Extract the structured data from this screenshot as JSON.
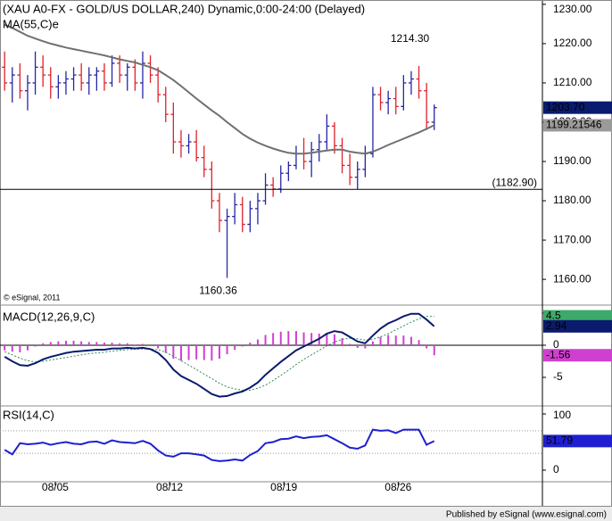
{
  "chart_data": [
    {
      "type": "ohlc",
      "title": "(XAU A0-FX - GOLD/US DOLLAR,240) Dynamic,0:00-24:00 (Delayed)",
      "x": [
        0,
        1,
        2,
        3,
        4,
        5,
        6,
        7,
        8,
        9,
        10,
        11,
        12,
        13,
        14,
        15,
        16,
        17,
        18,
        19,
        20,
        21,
        22,
        23,
        24,
        25,
        26,
        27,
        28,
        29,
        30,
        31,
        32,
        33,
        34,
        35,
        36,
        37,
        38,
        39,
        40,
        41,
        42,
        43,
        44,
        45,
        46,
        47,
        48,
        49,
        50,
        51,
        52,
        53,
        54,
        55,
        56
      ],
      "xlim": [
        -0.6,
        70.1
      ],
      "xticks": [
        {
          "value": 6.6,
          "label": "08/05"
        },
        {
          "value": 21.5,
          "label": "08/12"
        },
        {
          "value": 36.4,
          "label": "08/19"
        },
        {
          "value": 51.3,
          "label": "08/26"
        }
      ],
      "open": [
        1214,
        1210,
        1212,
        1208,
        1210,
        1214,
        1212,
        1209,
        1210,
        1211,
        1212,
        1210,
        1212,
        1213,
        1210,
        1215,
        1212,
        1214,
        1210,
        1215,
        1212,
        1207,
        1202,
        1195,
        1194,
        1195,
        1191,
        1188,
        1180,
        1175,
        1176,
        1179,
        1174,
        1178,
        1180,
        1184,
        1183,
        1187,
        1189,
        1192,
        1190,
        1193,
        1195,
        1199,
        1194,
        1189,
        1186,
        1188,
        1192,
        1207,
        1205,
        1206,
        1204,
        1210,
        1211,
        1208,
        1200
      ],
      "high": [
        1218,
        1214,
        1215,
        1212,
        1218,
        1217,
        1214,
        1212,
        1213,
        1214,
        1215,
        1214,
        1214,
        1215,
        1217,
        1217,
        1215,
        1216,
        1218,
        1217,
        1214,
        1209,
        1205,
        1198,
        1197,
        1198,
        1194,
        1190,
        1182,
        1178,
        1182,
        1181,
        1180,
        1182,
        1187,
        1186,
        1189,
        1190,
        1194,
        1196,
        1195,
        1197,
        1202,
        1200,
        1196,
        1192,
        1190,
        1194,
        1209,
        1209,
        1208,
        1209,
        1212,
        1213,
        1214.3,
        1210,
        1204.5
      ],
      "low": [
        1208,
        1205,
        1206,
        1203,
        1207,
        1209,
        1206,
        1206,
        1207,
        1208,
        1208,
        1207,
        1208,
        1208,
        1209,
        1210,
        1208,
        1208,
        1206,
        1210,
        1205,
        1200,
        1192,
        1191,
        1192,
        1190,
        1186,
        1178,
        1172,
        1160.36,
        1174,
        1172,
        1172,
        1174,
        1179,
        1181,
        1182,
        1185,
        1188,
        1188,
        1186,
        1190,
        1193,
        1192,
        1187,
        1184,
        1182.9,
        1186,
        1191,
        1203,
        1202,
        1202,
        1203,
        1207,
        1206,
        1198,
        1198
      ],
      "close": [
        1210,
        1212,
        1208,
        1210,
        1214,
        1212,
        1209,
        1210,
        1211,
        1212,
        1210,
        1212,
        1213,
        1210,
        1215,
        1212,
        1214,
        1210,
        1215,
        1212,
        1207,
        1202,
        1195,
        1194,
        1195,
        1191,
        1188,
        1180,
        1175,
        1176,
        1179,
        1174,
        1178,
        1180,
        1184,
        1183,
        1187,
        1189,
        1192,
        1190,
        1193,
        1195,
        1199,
        1194,
        1189,
        1186,
        1188,
        1192,
        1207,
        1205,
        1206,
        1204,
        1210,
        1211,
        1208,
        1200,
        1203.7
      ],
      "up_color": "#2626a6",
      "down_color": "#e0202a",
      "series": [
        {
          "name": "MA(55,C)e",
          "color": "#707070",
          "width": 2,
          "style": "solid",
          "values": [
            1224.8,
            1224,
            1223,
            1222,
            1221.3,
            1220.6,
            1220,
            1219.5,
            1219,
            1218.6,
            1218.2,
            1217.8,
            1217.4,
            1217,
            1216.5,
            1216,
            1215.6,
            1215.2,
            1214.6,
            1214,
            1213.2,
            1212,
            1210.7,
            1209.2,
            1207.6,
            1206,
            1204.5,
            1203,
            1201.6,
            1200,
            1198.5,
            1197,
            1195.8,
            1194.8,
            1194,
            1193.3,
            1192.7,
            1192.2,
            1192,
            1192,
            1192.2,
            1192.5,
            1192.8,
            1193,
            1193,
            1192.5,
            1192.2,
            1192,
            1192.5,
            1193.3,
            1194.2,
            1195,
            1195.8,
            1196.6,
            1197.4,
            1198.3,
            1199.21546
          ]
        }
      ],
      "ylim": [
        1153.9,
        1231.1
      ],
      "yticks": [
        {
          "value": 1160,
          "label": "1160.00"
        },
        {
          "value": 1170,
          "label": "1170.00"
        },
        {
          "value": 1180,
          "label": "1180.00"
        },
        {
          "value": 1190,
          "label": "1190.00"
        },
        {
          "value": 1200,
          "label": "1200.00"
        },
        {
          "value": 1210,
          "label": "1210.00"
        },
        {
          "value": 1220,
          "label": "1220.00"
        },
        {
          "value": 1230,
          "label": "1230.00"
        }
      ],
      "annotations": [
        {
          "label": "1214.30",
          "value": 1214.3,
          "x": 54,
          "position": "above"
        },
        {
          "label": "1160.36",
          "value": 1160.36,
          "x": 29,
          "position": "below"
        },
        {
          "label": "(1182.90)",
          "value": 1182.9,
          "line": true
        }
      ],
      "last_labels": [
        {
          "value": 1203.7,
          "label": "1203.70",
          "color": "#0a1a6e",
          "text_color": "#ffffff"
        },
        {
          "value": 1199.21546,
          "color": "#9a9a9a",
          "text_color": "#000000"
        }
      ],
      "note": "© eSignal, 2011"
    },
    {
      "type": "line",
      "title": "MACD(12,26,9,C)",
      "ylim": [
        -9.17,
        5.83
      ],
      "yticks": [
        5,
        0,
        -5
      ],
      "zero_line": true,
      "series": [
        {
          "name": "hist",
          "kind": "bar",
          "color": "#d040d0",
          "values": [
            -0.8,
            -1.0,
            -1.1,
            -0.8,
            -0.2,
            0.3,
            0.5,
            0.6,
            0.7,
            0.7,
            0.6,
            0.5,
            0.5,
            0.4,
            0.4,
            0.3,
            0.3,
            0.1,
            0.2,
            0,
            -0.5,
            -1.2,
            -2.1,
            -2.4,
            -2.3,
            -2.2,
            -2.3,
            -2.4,
            -2.1,
            -1.4,
            -0.7,
            -0.2,
            0.4,
            0.9,
            1.6,
            1.9,
            2.1,
            2.2,
            2.2,
            2.0,
            1.9,
            1.8,
            1.9,
            1.7,
            1.1,
            0.2,
            -0.4,
            -0.5,
            0.6,
            1.3,
            1.6,
            1.5,
            1.5,
            1.3,
            0.8,
            -0.5,
            -1.56
          ]
        },
        {
          "name": "signal",
          "color": "#2e8b57",
          "width": 1,
          "style": "dotted",
          "values": [
            -1.0,
            -1.5,
            -2.0,
            -2.4,
            -2.6,
            -2.5,
            -2.3,
            -2.1,
            -1.9,
            -1.7,
            -1.5,
            -1.3,
            -1.2,
            -1.1,
            -0.9,
            -0.8,
            -0.7,
            -0.6,
            -0.6,
            -0.6,
            -0.7,
            -1.1,
            -1.7,
            -2.4,
            -3.1,
            -3.8,
            -4.5,
            -5.2,
            -5.9,
            -6.5,
            -6.8,
            -7.0,
            -7.0,
            -6.7,
            -6.2,
            -5.5,
            -4.7,
            -3.9,
            -3.0,
            -2.2,
            -1.5,
            -0.8,
            -0.1,
            0.5,
            0.9,
            1.1,
            1.0,
            0.8,
            0.9,
            1.3,
            1.8,
            2.4,
            3.0,
            3.6,
            4.1,
            4.5,
            4.5
          ]
        },
        {
          "name": "macd",
          "color": "#0a1a6e",
          "width": 2,
          "style": "solid",
          "values": [
            -1.8,
            -2.5,
            -3.1,
            -3.2,
            -2.8,
            -2.2,
            -1.8,
            -1.5,
            -1.2,
            -1.0,
            -0.9,
            -0.8,
            -0.7,
            -0.7,
            -0.5,
            -0.5,
            -0.4,
            -0.5,
            -0.4,
            -0.6,
            -1.2,
            -2.3,
            -3.8,
            -4.8,
            -5.4,
            -6.0,
            -6.8,
            -7.6,
            -8.0,
            -7.9,
            -7.5,
            -7.2,
            -6.6,
            -5.8,
            -4.6,
            -3.6,
            -2.6,
            -1.7,
            -0.8,
            -0.2,
            0.4,
            1.0,
            1.8,
            2.2,
            2.0,
            1.3,
            0.6,
            0.3,
            1.5,
            2.6,
            3.4,
            3.9,
            4.5,
            4.9,
            4.9,
            4.0,
            2.94
          ]
        }
      ],
      "last_labels": [
        {
          "value": 4.5,
          "color": "#3caa6a",
          "text_color": "#ffffff"
        },
        {
          "value": 2.94,
          "color": "#0a1a6e",
          "text_color": "#ffffff"
        },
        {
          "value": -1.56,
          "color": "#d040d0",
          "text_color": "#ffffff"
        }
      ]
    },
    {
      "type": "line",
      "title": "RSI(14,C)",
      "ylim": [
        -17.5,
        114.3
      ],
      "yticks": [
        100,
        0
      ],
      "ref_lines": [
        70,
        30
      ],
      "series": [
        {
          "name": "rsi",
          "color": "#1f1fd0",
          "width": 2,
          "style": "solid",
          "values": [
            36,
            28,
            48,
            46,
            47,
            49,
            45,
            48,
            50,
            47,
            46,
            50,
            51,
            47,
            53,
            50,
            49,
            48,
            52,
            47,
            35,
            26,
            24,
            30,
            30,
            28,
            26,
            18,
            16,
            17,
            19,
            17,
            27,
            34,
            48,
            50,
            55,
            56,
            60,
            57,
            59,
            60,
            62,
            55,
            48,
            40,
            38,
            44,
            72,
            70,
            71,
            66,
            72,
            72,
            72,
            45,
            51.79
          ]
        }
      ],
      "last_labels": [
        {
          "value": 51.79,
          "color": "#1f1fd0",
          "text_color": "#ffffff"
        }
      ]
    }
  ],
  "footer": "Published by eSignal (www.esignal.com)"
}
